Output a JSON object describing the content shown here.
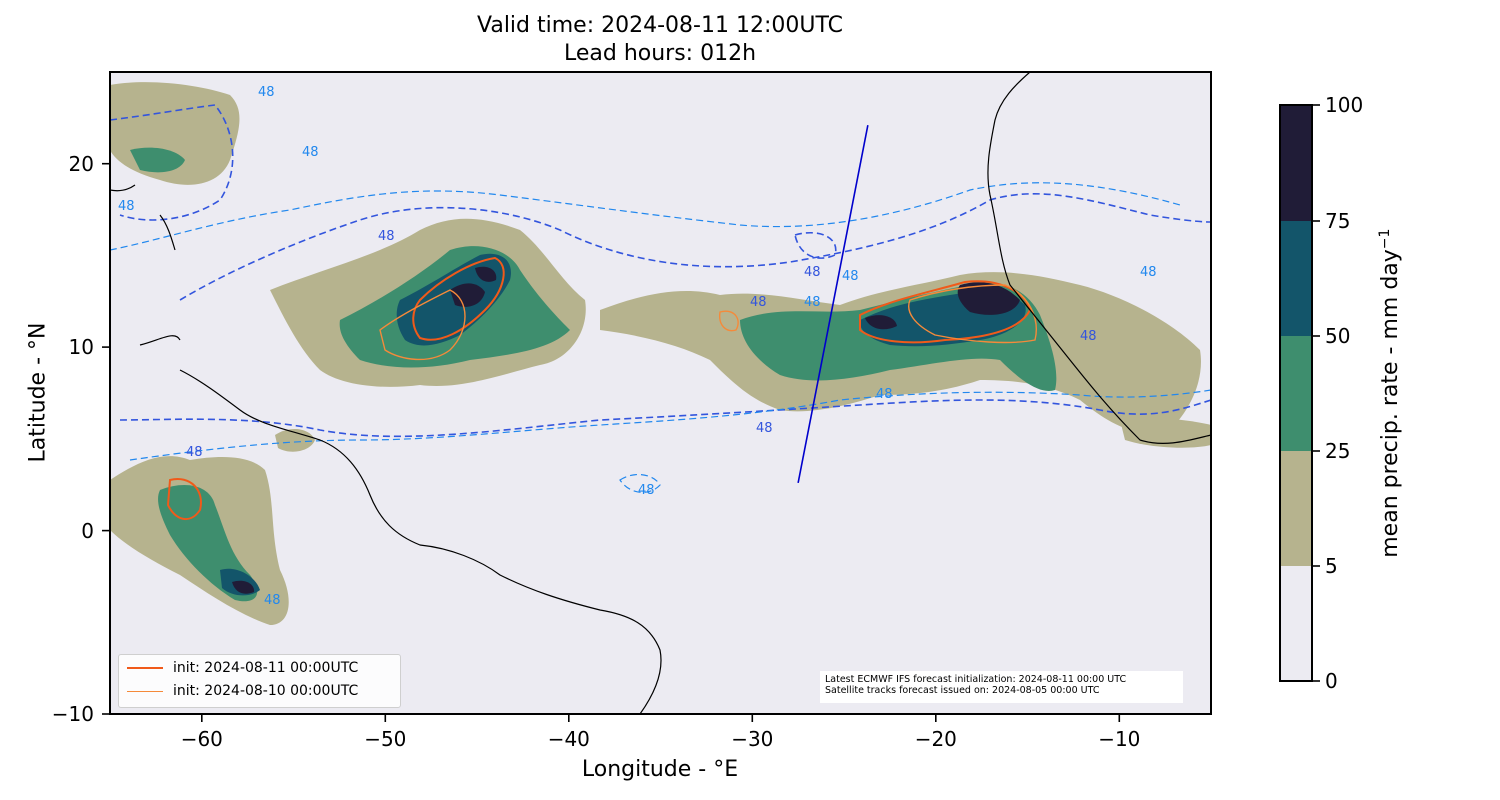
{
  "title_line1": "Valid time: 2024-08-11 12:00UTC",
  "title_line2": "Lead hours: 012h",
  "xlabel": "Longitude - °E",
  "ylabel": "Latitude - °N",
  "colorbar": {
    "label": "mean precip. rate - mm day",
    "label_exponent": "−1",
    "ticks": [
      "0",
      "5",
      "25",
      "50",
      "75",
      "100"
    ],
    "levels": [
      0,
      5,
      25,
      50,
      75,
      100
    ],
    "colors": [
      "#ecebf2",
      "#b6b38e",
      "#3e8e6e",
      "#13556a",
      "#201c37"
    ]
  },
  "x_ticks": [
    "−60",
    "−50",
    "−40",
    "−30",
    "−20",
    "−10"
  ],
  "y_ticks": [
    "20",
    "10",
    "0",
    "−10"
  ],
  "xlim": [
    -65,
    -5
  ],
  "ylim": [
    -10,
    25
  ],
  "contour_label": "48",
  "legend": {
    "entries": [
      {
        "label": "init: 2024-08-11 00:00UTC",
        "color": "#f05a1a"
      },
      {
        "label": "init: 2024-08-10 00:00UTC",
        "color": "#f58a3a"
      }
    ]
  },
  "note": {
    "line1": "Latest ECMWF IFS forecast initialization: 2024-08-11 00:00 UTC",
    "line2": "Satellite tracks forecast issued on: 2024-08-05 00:00 UTC"
  },
  "satellite_track": {
    "start": [
      -27.5,
      2.6
    ],
    "end": [
      -23.7,
      22.1
    ],
    "color": "#0000cc"
  },
  "colors": {
    "background": "#ecebf2",
    "contour_dark_blue": "#3355dd",
    "contour_light_blue": "#2288ee",
    "coastline": "#000000"
  }
}
